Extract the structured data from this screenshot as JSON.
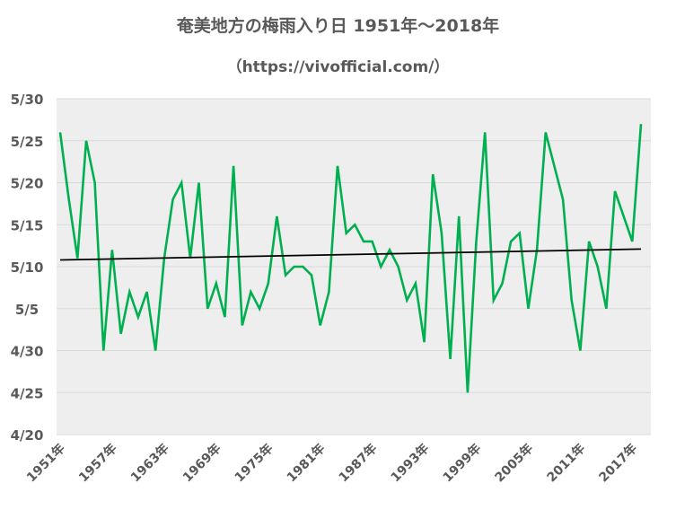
{
  "chart_data": {
    "type": "line",
    "title": "奄美地方の梅雨入り日 1951年～2018年",
    "subtitle": "（https://vivofficial.com/）",
    "xlabel": "",
    "ylabel": "",
    "y_ticks": [
      "4/20",
      "4/25",
      "4/30",
      "5/5",
      "5/10",
      "5/15",
      "5/20",
      "5/25",
      "5/30"
    ],
    "ylim": [
      "4/20",
      "5/30"
    ],
    "x_tick_labels": [
      "1951年",
      "1957年",
      "1963年",
      "1969年",
      "1975年",
      "1981年",
      "1987年",
      "1993年",
      "1999年",
      "2005年",
      "2011年",
      "2017年"
    ],
    "x_tick_years": [
      1951,
      1957,
      1963,
      1969,
      1975,
      1981,
      1987,
      1993,
      1999,
      2005,
      2011,
      2017
    ],
    "plot_background": "#eeeeee",
    "grid": true,
    "series": [
      {
        "color": "#00b050",
        "x": [
          1951,
          1952,
          1953,
          1954,
          1955,
          1956,
          1957,
          1958,
          1959,
          1960,
          1961,
          1962,
          1963,
          1964,
          1965,
          1966,
          1967,
          1968,
          1969,
          1970,
          1971,
          1972,
          1973,
          1974,
          1975,
          1976,
          1977,
          1978,
          1979,
          1980,
          1981,
          1982,
          1983,
          1984,
          1985,
          1986,
          1987,
          1988,
          1989,
          1990,
          1991,
          1992,
          1993,
          1994,
          1995,
          1996,
          1997,
          1998,
          1999,
          2000,
          2001,
          2002,
          2003,
          2004,
          2005,
          2006,
          2007,
          2008,
          2009,
          2010,
          2011,
          2012,
          2013,
          2014,
          2015,
          2016,
          2017,
          2018
        ],
        "values": [
          "5/26",
          "5/18",
          "5/11",
          "5/25",
          "5/20",
          "4/30",
          "5/12",
          "5/2",
          "5/7",
          "5/4",
          "5/7",
          "4/30",
          "5/11",
          "5/18",
          "5/20",
          "5/11",
          "5/20",
          "5/5",
          "5/8",
          "5/4",
          "5/22",
          "5/3",
          "5/7",
          "5/5",
          "5/8",
          "5/16",
          "5/9",
          "5/10",
          "5/10",
          "5/9",
          "5/3",
          "5/7",
          "5/22",
          "5/14",
          "5/15",
          "5/13",
          "5/13",
          "5/10",
          "5/12",
          "5/10",
          "5/6",
          "5/8",
          "5/1",
          "5/21",
          "5/14",
          "4/29",
          "5/16",
          "4/25",
          "5/13",
          "5/26",
          "5/6",
          "5/8",
          "5/13",
          "5/14",
          "5/5",
          "5/12",
          "5/26",
          "5/22",
          "5/18",
          "5/6",
          "4/30",
          "5/13",
          "5/10",
          "5/5",
          "5/19",
          "5/16",
          "5/13",
          "5/27"
        ]
      },
      {
        "name": "trend",
        "color": "#000000",
        "x": [
          1951,
          2018
        ],
        "values": [
          "5/10.8",
          "5/12.1"
        ]
      }
    ]
  }
}
